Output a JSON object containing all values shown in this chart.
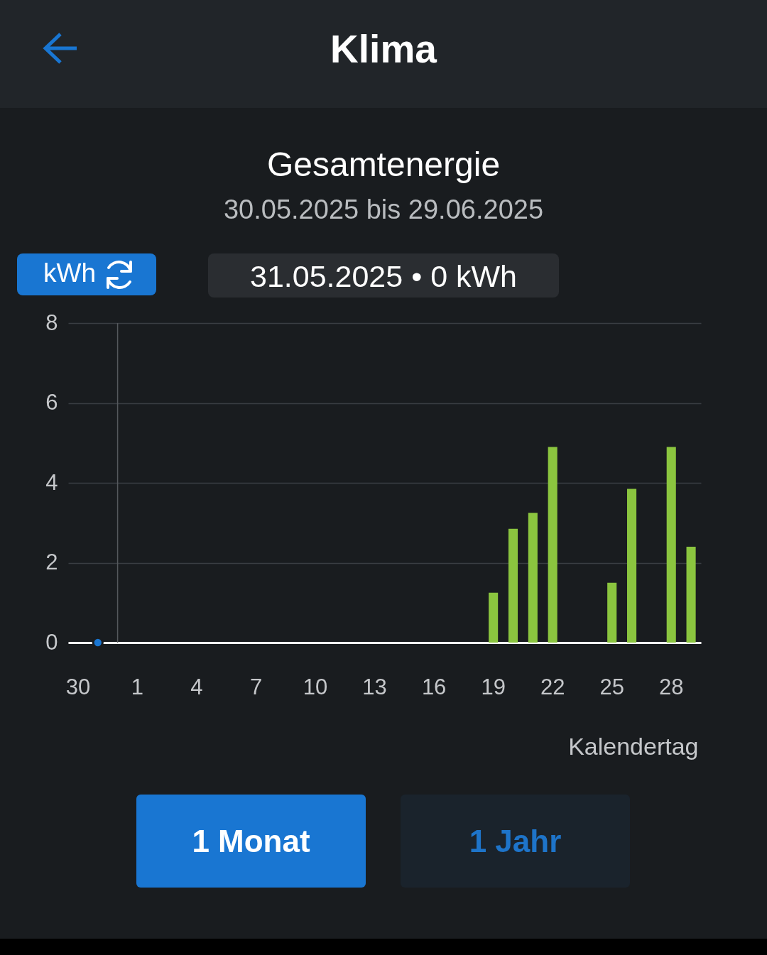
{
  "chart_data": {
    "type": "bar",
    "title": "Gesamtenergie",
    "subtitle": "30.05.2025 bis 29.06.2025",
    "xlabel": "Kalendertag",
    "ylabel": "kWh",
    "annotations": [
      "Klima",
      "31.05.2025 • 0 kWh",
      "1 Monat",
      "1 Jahr"
    ],
    "categories": [
      "30",
      null,
      null,
      "1",
      null,
      null,
      "4",
      null,
      null,
      "7",
      null,
      null,
      "10",
      null,
      null,
      "13",
      null,
      null,
      "16",
      null,
      null,
      "19",
      null,
      null,
      "22",
      null,
      null,
      "25",
      null,
      null,
      "28",
      null
    ],
    "series": [
      {
        "color": "#8bc53f",
        "values": [
          null,
          null,
          null,
          null,
          null,
          null,
          null,
          null,
          null,
          null,
          null,
          null,
          null,
          null,
          null,
          null,
          null,
          null,
          null,
          null,
          null,
          1.25,
          2.85,
          3.25,
          4.9,
          null,
          null,
          1.5,
          3.85,
          null,
          4.9,
          2.4
        ]
      },
      {
        "type": "scatter",
        "color": "#1976d2",
        "values": [
          null,
          0,
          null,
          null,
          null,
          null,
          null,
          null,
          null,
          null,
          null,
          null,
          null,
          null,
          null,
          null,
          null,
          null,
          null,
          null,
          null,
          null,
          null,
          null,
          null,
          null,
          null,
          null,
          null,
          null,
          null,
          null
        ]
      }
    ],
    "ylim": [
      0,
      8
    ],
    "yticks": [
      0,
      2,
      4,
      6,
      8
    ],
    "grid": "y",
    "marker": "circle"
  }
}
